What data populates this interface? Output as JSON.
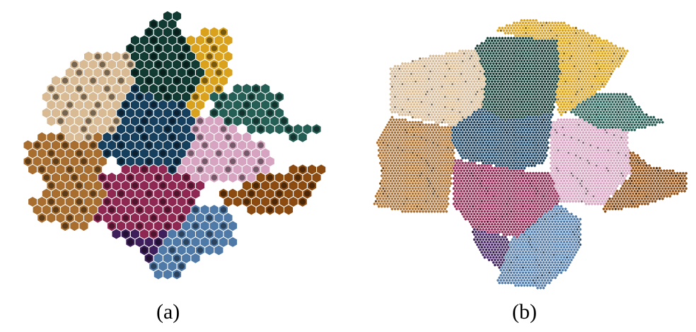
{
  "captions": {
    "a": "(a)",
    "b": "(b)"
  },
  "clusters": [
    {
      "name": "tan",
      "color": "#d8bb94"
    },
    {
      "name": "dark-green",
      "color": "#103a32"
    },
    {
      "name": "gold",
      "color": "#daa21c"
    },
    {
      "name": "teal",
      "color": "#255e55"
    },
    {
      "name": "navy",
      "color": "#163f5e"
    },
    {
      "name": "pink",
      "color": "#d6a4c0"
    },
    {
      "name": "brown-left",
      "color": "#a86e2f"
    },
    {
      "name": "brown-right",
      "color": "#8a4a10"
    },
    {
      "name": "crimson",
      "color": "#8e2752"
    },
    {
      "name": "blue",
      "color": "#4f7aa8"
    },
    {
      "name": "purple",
      "color": "#3e1f5c"
    }
  ]
}
